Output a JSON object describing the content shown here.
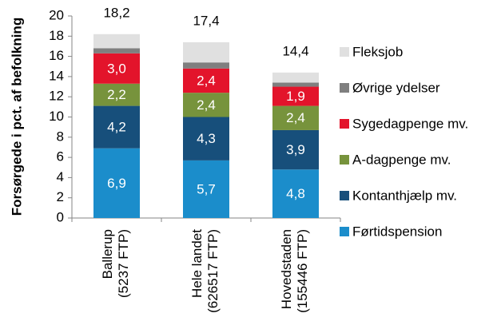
{
  "chart_data": {
    "type": "stacked_bar",
    "y_label": "Forsørgede i pct. af befolkning",
    "categories": [
      "Ballerup\n(5237 FTP)",
      "Hele landet\n(626517 FTP)",
      "Hovedstaden\n(155446 FTP)"
    ],
    "series": [
      {
        "name": "Førtidspension",
        "color": "#1b8dcb",
        "values": [
          6.9,
          5.7,
          4.8
        ],
        "value_labels": [
          "6,9",
          "5,7",
          "4,8"
        ]
      },
      {
        "name": "Kontanthjælp mv.",
        "color": "#174f7b",
        "values": [
          4.2,
          4.3,
          3.9
        ],
        "value_labels": [
          "4,2",
          "4,3",
          "3,9"
        ]
      },
      {
        "name": "A-dagpenge mv.",
        "color": "#77933c",
        "values": [
          2.2,
          2.4,
          2.4
        ],
        "value_labels": [
          "2,2",
          "2,4",
          "2,4"
        ]
      },
      {
        "name": "Sygedagpenge mv.",
        "color": "#e3142b",
        "values": [
          3.0,
          2.4,
          1.9
        ],
        "value_labels": [
          "3,0",
          "2,4",
          "1,9"
        ]
      },
      {
        "name": "Øvrige ydelser",
        "color": "#7f7f7f",
        "values": [
          0.5,
          0.6,
          0.4
        ]
      },
      {
        "name": "Fleksjob",
        "color": "#e0e0e0",
        "values": [
          1.4,
          2.0,
          1.0
        ]
      }
    ],
    "totals": [
      18.2,
      17.4,
      14.4
    ],
    "totals_labels": [
      "18,2",
      "17,4",
      "14,4"
    ],
    "ylim": [
      0,
      20
    ],
    "yticks": [
      0,
      2,
      4,
      6,
      8,
      10,
      12,
      14,
      16,
      18,
      20
    ]
  }
}
